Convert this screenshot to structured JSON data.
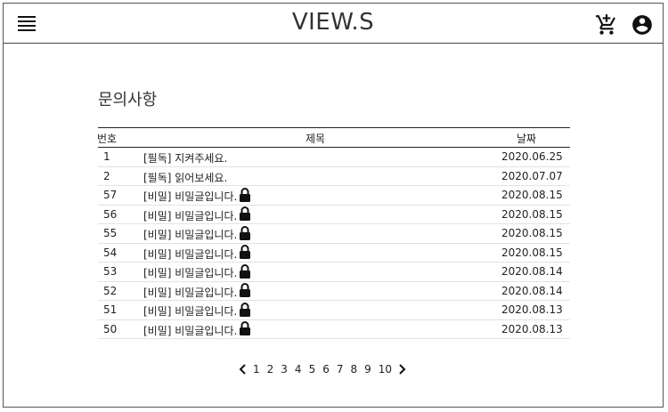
{
  "header": {
    "brand": "VIEW.S",
    "icons": {
      "menu": "hamburger-menu-icon",
      "cart": "cart-add-icon",
      "account": "account-circle-icon"
    }
  },
  "page": {
    "title": "문의사항"
  },
  "table": {
    "columns": {
      "no": "번호",
      "title": "제목",
      "date": "날짜"
    },
    "rows": [
      {
        "no": "1",
        "title": "[필독] 지켜주세요.",
        "date": "2020.06.25",
        "locked": false
      },
      {
        "no": "2",
        "title": "[필독] 읽어보세요.",
        "date": "2020.07.07",
        "locked": false
      },
      {
        "no": "57",
        "title": "[비밀] 비밀글입니다.",
        "date": "2020.08.15",
        "locked": true
      },
      {
        "no": "56",
        "title": "[비밀] 비밀글입니다.",
        "date": "2020.08.15",
        "locked": true
      },
      {
        "no": "55",
        "title": "[비밀] 비밀글입니다.",
        "date": "2020.08.15",
        "locked": true
      },
      {
        "no": "54",
        "title": "[비밀] 비밀글입니다.",
        "date": "2020.08.15",
        "locked": true
      },
      {
        "no": "53",
        "title": "[비밀] 비밀글입니다.",
        "date": "2020.08.14",
        "locked": true
      },
      {
        "no": "52",
        "title": "[비밀] 비밀글입니다.",
        "date": "2020.08.14",
        "locked": true
      },
      {
        "no": "51",
        "title": "[비밀] 비밀글입니다.",
        "date": "2020.08.13",
        "locked": true
      },
      {
        "no": "50",
        "title": "[비밀] 비밀글입니다.",
        "date": "2020.08.13",
        "locked": true
      }
    ]
  },
  "pagination": {
    "pages": [
      "1",
      "2",
      "3",
      "4",
      "5",
      "6",
      "7",
      "8",
      "9",
      "10"
    ],
    "prev_icon": "chevron-left-icon",
    "next_icon": "chevron-right-icon"
  }
}
